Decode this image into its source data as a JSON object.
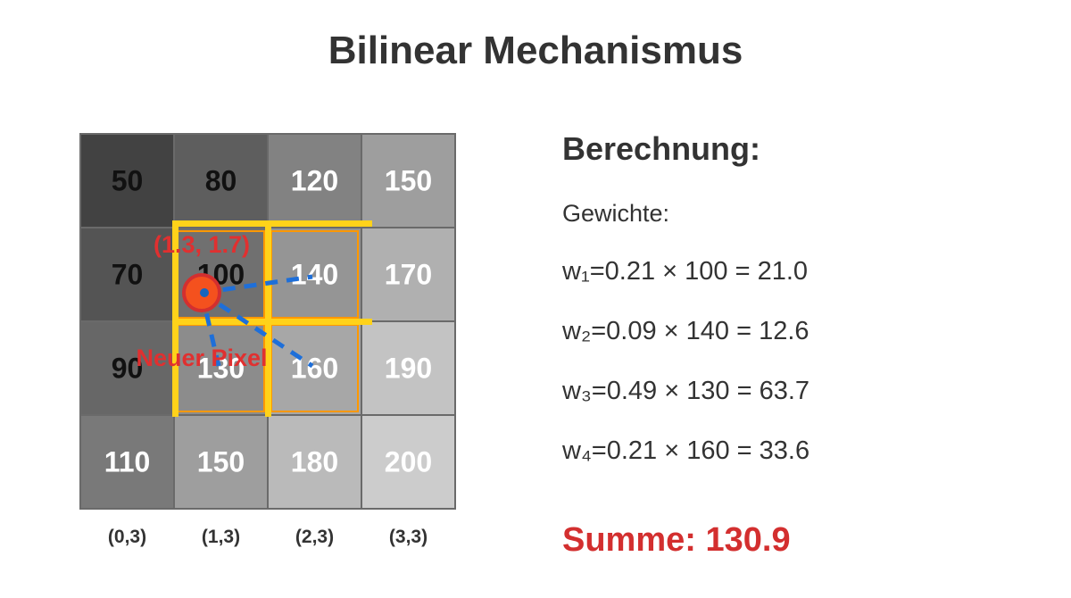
{
  "title": "Bilinear Mechanismus",
  "grid": {
    "cells": [
      [
        50,
        80,
        120,
        150
      ],
      [
        70,
        100,
        140,
        170
      ],
      [
        90,
        130,
        160,
        190
      ],
      [
        110,
        150,
        180,
        200
      ]
    ],
    "column_labels": [
      "(0,3)",
      "(1,3)",
      "(2,3)",
      "(3,3)"
    ],
    "neighbor_cells": [
      [
        1,
        1
      ],
      [
        1,
        2
      ],
      [
        2,
        1
      ],
      [
        2,
        2
      ]
    ],
    "sample_point_label": "(1.3, 1.7)",
    "new_pixel_label": "Neuer Pixel"
  },
  "calculation": {
    "heading": "Berechnung:",
    "weights_label": "Gewichte:",
    "lines": [
      "w₁=0.21 × 100 = 21.0",
      "w₂=0.09 × 140 = 12.6",
      "w₃=0.49 × 130 = 63.7",
      "w₄=0.21 × 160 = 33.6"
    ],
    "sum": "Summe: 130.9"
  },
  "colors": {
    "highlight": "#ffd21a",
    "highlight_border": "#ff9800",
    "point_fill": "#f4511e",
    "point_stroke": "#d32f2f",
    "dashes": "#1e6fd9",
    "sum_text": "#d32f2f"
  }
}
